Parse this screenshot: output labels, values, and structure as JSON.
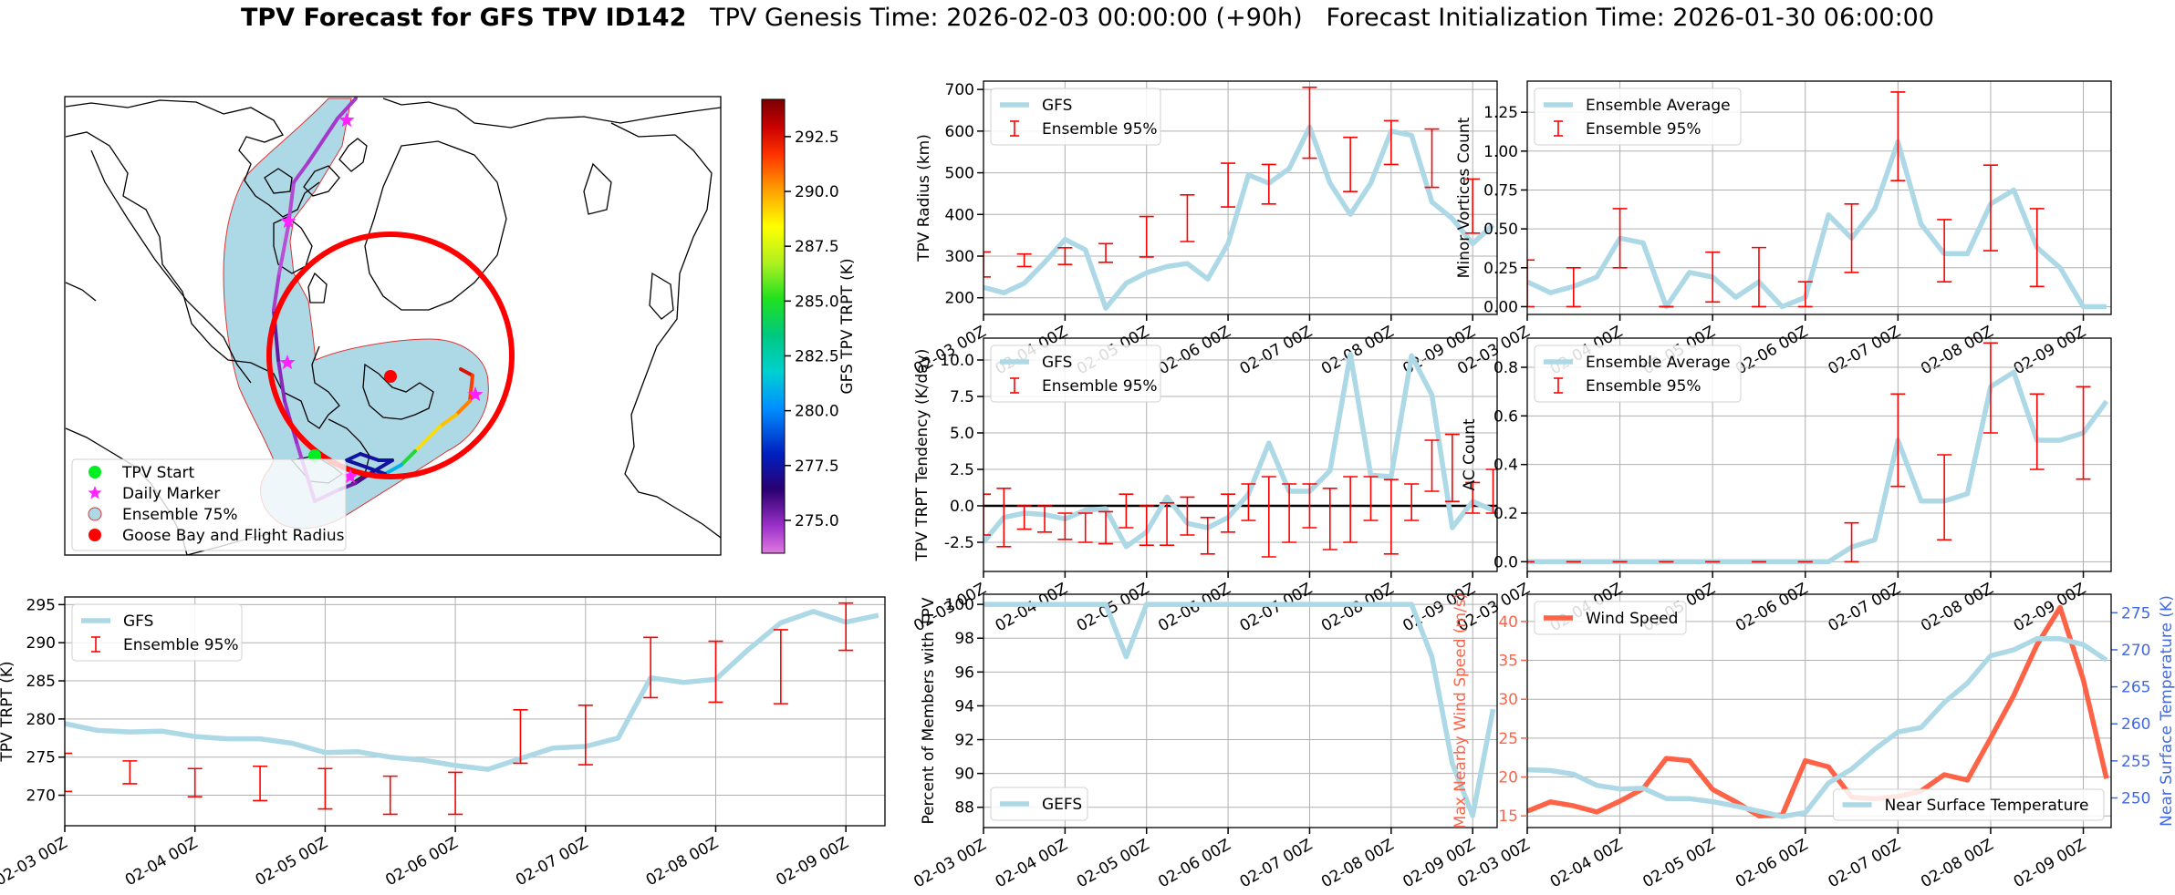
{
  "title": {
    "main": "TPV Forecast for GFS TPV ID142",
    "genesis": "TPV Genesis Time: 2026-02-03 00:00:00 (+90h)",
    "init": "Forecast Initialization Time: 2026-01-30 06:00:00"
  },
  "colors": {
    "gfs_line": "#add8e6",
    "errorbar": "#ff0000",
    "wind": "#ff6347",
    "wind_label": "#ff6347",
    "temp_label": "#4169e1",
    "ocean_plume": "#add8e6",
    "flight_radius": "#ff0000"
  },
  "time_ticks": [
    "02-03 00Z",
    "02-04 00Z",
    "02-05 00Z",
    "02-06 00Z",
    "02-07 00Z",
    "02-08 00Z",
    "02-09 00Z"
  ],
  "map": {
    "legend": [
      "TPV Start",
      "Daily Marker",
      "Ensemble 75%",
      "Goose Bay and Flight Radius"
    ],
    "legend_icons": [
      "green-circle",
      "magenta-star",
      "lightblue-circle-red-edge",
      "red-circle"
    ],
    "colorbar": {
      "label": "GFS TPV TRPT (K)",
      "ticks": [
        "275.0",
        "277.5",
        "280.0",
        "282.5",
        "285.0",
        "287.5",
        "290.0",
        "292.5"
      ],
      "range": [
        273.5,
        294.2
      ],
      "colormap": "gist_ncar_r"
    },
    "track_trpt_k": [
      292.5,
      291.5,
      290.5,
      289.5,
      289,
      284.8,
      281,
      277.5,
      277.3,
      277.5,
      277.3,
      277.5,
      277.4,
      276,
      275.4,
      274.5,
      274.5,
      274.8,
      275,
      275.5,
      274.5,
      274.2,
      274.3,
      274.5,
      274.6
    ]
  },
  "chart_data": [
    {
      "id": "trpt",
      "type": "line",
      "ylabel": "TPV TRPT (K)",
      "ylim": [
        266,
        296
      ],
      "yticks": [
        270,
        275,
        280,
        285,
        290,
        295
      ],
      "xlim": [
        0,
        25.2
      ],
      "legend": [
        "GFS",
        "Ensemble 95%"
      ],
      "series": [
        {
          "name": "GFS",
          "x": [
            0,
            1,
            2,
            3,
            4,
            5,
            6,
            7,
            8,
            9,
            10,
            11,
            12,
            13,
            14,
            15,
            16,
            17,
            18,
            19,
            20,
            21,
            22,
            23,
            24,
            25
          ],
          "y": [
            279.4,
            278.5,
            278.3,
            278.4,
            277.7,
            277.4,
            277.4,
            276.8,
            275.6,
            275.7,
            275.0,
            274.6,
            273.9,
            273.4,
            274.8,
            276.2,
            276.4,
            277.5,
            285.4,
            284.8,
            285.2,
            289.1,
            292.6,
            294.1,
            292.7,
            293.6
          ]
        }
      ],
      "errorbars": [
        {
          "x": 0,
          "lo": 270.5,
          "hi": 275.5
        },
        {
          "x": 2,
          "lo": 271.5,
          "hi": 274.5
        },
        {
          "x": 4,
          "lo": 269.8,
          "hi": 273.5
        },
        {
          "x": 6,
          "lo": 269.3,
          "hi": 273.8
        },
        {
          "x": 8,
          "lo": 268.2,
          "hi": 273.5
        },
        {
          "x": 10,
          "lo": 267.5,
          "hi": 272.5
        },
        {
          "x": 12,
          "lo": 267.5,
          "hi": 273.0
        },
        {
          "x": 14,
          "lo": 274.2,
          "hi": 281.2
        },
        {
          "x": 16,
          "lo": 274.0,
          "hi": 281.8
        },
        {
          "x": 18,
          "lo": 282.8,
          "hi": 290.7
        },
        {
          "x": 20,
          "lo": 282.2,
          "hi": 290.2
        },
        {
          "x": 22,
          "lo": 282.0,
          "hi": 291.7
        },
        {
          "x": 24,
          "lo": 289.0,
          "hi": 295.2
        }
      ]
    },
    {
      "id": "radius",
      "type": "line",
      "ylabel": "TPV Radius (km)",
      "ylim": [
        160,
        720
      ],
      "yticks": [
        200,
        300,
        400,
        500,
        600,
        700
      ],
      "xlim": [
        0,
        25.2
      ],
      "legend": [
        "GFS",
        "Ensemble 95%"
      ],
      "series": [
        {
          "name": "GFS",
          "x": [
            0,
            1,
            2,
            3,
            4,
            5,
            6,
            7,
            8,
            9,
            10,
            11,
            12,
            13,
            14,
            15,
            16,
            17,
            18,
            19,
            20,
            21,
            22,
            23,
            24,
            25
          ],
          "y": [
            225,
            212,
            235,
            285,
            340,
            315,
            175,
            235,
            260,
            275,
            282,
            245,
            330,
            495,
            475,
            510,
            610,
            475,
            400,
            475,
            600,
            590,
            430,
            390,
            330,
            375
          ]
        }
      ],
      "errorbars": [
        {
          "x": 0,
          "lo": 250,
          "hi": 310
        },
        {
          "x": 2,
          "lo": 275,
          "hi": 305
        },
        {
          "x": 4,
          "lo": 280,
          "hi": 320
        },
        {
          "x": 6,
          "lo": 285,
          "hi": 330
        },
        {
          "x": 8,
          "lo": 298,
          "hi": 395
        },
        {
          "x": 10,
          "lo": 335,
          "hi": 447
        },
        {
          "x": 12,
          "lo": 418,
          "hi": 523
        },
        {
          "x": 14,
          "lo": 425,
          "hi": 520
        },
        {
          "x": 16,
          "lo": 535,
          "hi": 705
        },
        {
          "x": 18,
          "lo": 455,
          "hi": 585
        },
        {
          "x": 20,
          "lo": 520,
          "hi": 625
        },
        {
          "x": 22,
          "lo": 465,
          "hi": 605
        },
        {
          "x": 24,
          "lo": 355,
          "hi": 485
        }
      ]
    },
    {
      "id": "tendency",
      "type": "line",
      "ylabel": "TPV TRPT Tendency (K/day)",
      "ylim": [
        -4.5,
        11.5
      ],
      "yticks": [
        -2.5,
        0.0,
        2.5,
        5.0,
        7.5,
        10.0
      ],
      "xlim": [
        0,
        25.2
      ],
      "legend": [
        "GFS",
        "Ensemble 95%"
      ],
      "zero_line": true,
      "series": [
        {
          "name": "GFS",
          "x": [
            0,
            1,
            2,
            3,
            4,
            5,
            6,
            7,
            8,
            9,
            10,
            11,
            12,
            13,
            14,
            15,
            16,
            17,
            18,
            19,
            20,
            21,
            22,
            23,
            24,
            25
          ],
          "y": [
            -2.5,
            -0.8,
            -0.5,
            -0.6,
            -0.9,
            -0.3,
            -0.2,
            -2.8,
            -1.8,
            0.6,
            -1.2,
            -1.5,
            -0.8,
            0.8,
            4.3,
            1.0,
            1.0,
            2.4,
            10.4,
            2.1,
            2.0,
            10.3,
            7.6,
            -1.5,
            0.3,
            -0.3
          ]
        }
      ],
      "errorbars": [
        {
          "x": 0,
          "lo": -2.0,
          "hi": 0.8
        },
        {
          "x": 1,
          "lo": -2.8,
          "hi": 1.2
        },
        {
          "x": 2,
          "lo": -1.6,
          "hi": 0.0
        },
        {
          "x": 3,
          "lo": -1.8,
          "hi": 0.0
        },
        {
          "x": 4,
          "lo": -2.3,
          "hi": -0.5
        },
        {
          "x": 5,
          "lo": -2.5,
          "hi": -0.5
        },
        {
          "x": 6,
          "lo": -2.6,
          "hi": -0.4
        },
        {
          "x": 7,
          "lo": -1.5,
          "hi": 0.8
        },
        {
          "x": 8,
          "lo": -2.7,
          "hi": 0.0
        },
        {
          "x": 9,
          "lo": -2.7,
          "hi": 0.2
        },
        {
          "x": 10,
          "lo": -2.0,
          "hi": 0.6
        },
        {
          "x": 11,
          "lo": -3.3,
          "hi": -0.8
        },
        {
          "x": 12,
          "lo": -1.8,
          "hi": 0.8
        },
        {
          "x": 13,
          "lo": -1.0,
          "hi": 1.5
        },
        {
          "x": 14,
          "lo": -3.5,
          "hi": 2.0
        },
        {
          "x": 15,
          "lo": -2.5,
          "hi": 1.5
        },
        {
          "x": 16,
          "lo": -1.5,
          "hi": 1.5
        },
        {
          "x": 17,
          "lo": -3.0,
          "hi": 1.2
        },
        {
          "x": 18,
          "lo": -2.5,
          "hi": 2.0
        },
        {
          "x": 19,
          "lo": -1.0,
          "hi": 2.0
        },
        {
          "x": 20,
          "lo": -3.3,
          "hi": 1.8
        },
        {
          "x": 21,
          "lo": -1.0,
          "hi": 1.5
        },
        {
          "x": 22,
          "lo": 1.0,
          "hi": 4.5
        },
        {
          "x": 23,
          "lo": 0.3,
          "hi": 4.9
        },
        {
          "x": 24,
          "lo": -0.5,
          "hi": 1.6
        },
        {
          "x": 25,
          "lo": -0.5,
          "hi": 2.5
        }
      ]
    },
    {
      "id": "percent",
      "type": "line",
      "ylabel": "Percent of Members with TPV",
      "ylim": [
        86.8,
        100.6
      ],
      "yticks": [
        88,
        90,
        92,
        94,
        96,
        98,
        100
      ],
      "xlim": [
        0,
        25.2
      ],
      "legend": [
        "GEFS"
      ],
      "series": [
        {
          "name": "GEFS",
          "x": [
            0,
            1,
            2,
            3,
            4,
            5,
            6,
            7,
            8,
            9,
            10,
            11,
            12,
            13,
            14,
            15,
            16,
            17,
            18,
            19,
            20,
            21,
            22,
            23,
            24,
            25
          ],
          "y": [
            100,
            100,
            100,
            100,
            100,
            100,
            100,
            100,
            100,
            100,
            100,
            100,
            100,
            100,
            100,
            100,
            100,
            100,
            100,
            100,
            100,
            100,
            100,
            100,
            100,
            100
          ]
        }
      ],
      "series_actual": [
        {
          "x": [
            0,
            1,
            2,
            3,
            4,
            5,
            6,
            7,
            8,
            9,
            10,
            11,
            12,
            13,
            14,
            15,
            16,
            17,
            18,
            19,
            20,
            21,
            22,
            23,
            24,
            25
          ],
          "y": [
            100,
            100,
            100,
            100,
            100,
            100,
            100,
            96.9,
            100,
            100,
            100,
            100,
            100,
            100,
            100,
            100,
            100,
            100,
            100,
            100,
            100,
            100,
            96.9,
            90.6,
            87.5,
            93.8
          ]
        }
      ]
    },
    {
      "id": "minor",
      "type": "line",
      "ylabel": "Minor Vortices Count",
      "ylim": [
        -0.05,
        1.45
      ],
      "yticks": [
        0.0,
        0.25,
        0.5,
        0.75,
        1.0,
        1.25
      ],
      "xlim": [
        0,
        25.2
      ],
      "legend": [
        "Ensemble Average",
        "Ensemble 95%"
      ],
      "series": [
        {
          "name": "Ensemble Average",
          "x": [
            0,
            1,
            2,
            3,
            4,
            5,
            6,
            7,
            8,
            9,
            10,
            11,
            12,
            13,
            14,
            15,
            16,
            17,
            18,
            19,
            20,
            21,
            22,
            23,
            24,
            25
          ],
          "y": [
            0.16,
            0.09,
            0.13,
            0.19,
            0.44,
            0.41,
            0.0,
            0.22,
            0.19,
            0.06,
            0.16,
            0.0,
            0.06,
            0.59,
            0.44,
            0.63,
            1.06,
            0.53,
            0.34,
            0.34,
            0.66,
            0.75,
            0.38,
            0.25,
            0.0,
            0.0
          ]
        }
      ],
      "errorbars": [
        {
          "x": 0,
          "lo": 0.0,
          "hi": 0.3
        },
        {
          "x": 2,
          "lo": 0.0,
          "hi": 0.25
        },
        {
          "x": 4,
          "lo": 0.25,
          "hi": 0.63
        },
        {
          "x": 6,
          "lo": 0.0,
          "hi": 0.0
        },
        {
          "x": 8,
          "lo": 0.03,
          "hi": 0.35
        },
        {
          "x": 10,
          "lo": 0.0,
          "hi": 0.38
        },
        {
          "x": 12,
          "lo": 0.0,
          "hi": 0.16
        },
        {
          "x": 14,
          "lo": 0.22,
          "hi": 0.66
        },
        {
          "x": 16,
          "lo": 0.81,
          "hi": 1.38
        },
        {
          "x": 18,
          "lo": 0.16,
          "hi": 0.56
        },
        {
          "x": 20,
          "lo": 0.36,
          "hi": 0.91
        },
        {
          "x": 22,
          "lo": 0.13,
          "hi": 0.63
        }
      ]
    },
    {
      "id": "ac",
      "type": "line",
      "ylabel": "AC Count",
      "ylim": [
        -0.04,
        0.92
      ],
      "yticks": [
        0.0,
        0.2,
        0.4,
        0.6,
        0.8
      ],
      "xlim": [
        0,
        25.2
      ],
      "legend": [
        "Ensemble Average",
        "Ensemble 95%"
      ],
      "series": [
        {
          "name": "Ensemble Average",
          "x": [
            0,
            1,
            2,
            3,
            4,
            5,
            6,
            7,
            8,
            9,
            10,
            11,
            12,
            13,
            14,
            15,
            16,
            17,
            18,
            19,
            20,
            21,
            22,
            23,
            24,
            25
          ],
          "y": [
            0,
            0,
            0,
            0,
            0,
            0,
            0,
            0,
            0,
            0,
            0,
            0,
            0,
            0,
            0.06,
            0.09,
            0.5,
            0.25,
            0.25,
            0.28,
            0.72,
            0.78,
            0.5,
            0.5,
            0.53,
            0.66
          ]
        }
      ],
      "errorbars": [
        {
          "x": 0,
          "lo": 0,
          "hi": 0
        },
        {
          "x": 2,
          "lo": 0,
          "hi": 0
        },
        {
          "x": 4,
          "lo": 0,
          "hi": 0
        },
        {
          "x": 6,
          "lo": 0,
          "hi": 0
        },
        {
          "x": 8,
          "lo": 0,
          "hi": 0
        },
        {
          "x": 10,
          "lo": 0,
          "hi": 0
        },
        {
          "x": 12,
          "lo": 0,
          "hi": 0
        },
        {
          "x": 14,
          "lo": 0.0,
          "hi": 0.16
        },
        {
          "x": 16,
          "lo": 0.31,
          "hi": 0.69
        },
        {
          "x": 18,
          "lo": 0.09,
          "hi": 0.44
        },
        {
          "x": 20,
          "lo": 0.53,
          "hi": 0.9
        },
        {
          "x": 22,
          "lo": 0.38,
          "hi": 0.69
        },
        {
          "x": 24,
          "lo": 0.34,
          "hi": 0.72
        }
      ]
    },
    {
      "id": "wind",
      "type": "line",
      "ylabel": "Max Nearby Wind Speed (m/s)",
      "ylabel_right": "Near Surface Temperature (K)",
      "ylim": [
        13.5,
        43.5
      ],
      "yticks": [
        15,
        20,
        25,
        30,
        35,
        40
      ],
      "ylim_right": [
        246,
        277.5
      ],
      "yticks_right": [
        250,
        255,
        260,
        265,
        270,
        275
      ],
      "xlim": [
        0,
        25.2
      ],
      "legend": [
        "Wind Speed"
      ],
      "legend_right": [
        "Near Surface Temperature"
      ],
      "series": [
        {
          "name": "Wind Speed",
          "x": [
            0,
            1,
            2,
            3,
            4,
            5,
            6,
            7,
            8,
            9,
            10,
            11,
            12,
            13,
            14,
            15,
            16,
            17,
            18,
            19,
            20,
            21,
            22,
            23,
            24,
            25
          ],
          "y": [
            15.6,
            16.8,
            16.3,
            15.5,
            16.9,
            18.5,
            22.4,
            22.1,
            18.4,
            16.8,
            15.0,
            15.1,
            22.1,
            21.3,
            17.4,
            17.2,
            17.5,
            18.2,
            20.3,
            19.6,
            25.0,
            30.5,
            37.0,
            41.8,
            32.5,
            19.8
          ]
        },
        {
          "name": "Near Surface Temperature",
          "x": [
            0,
            1,
            2,
            3,
            4,
            5,
            6,
            7,
            8,
            9,
            10,
            11,
            12,
            13,
            14,
            15,
            16,
            17,
            18,
            19,
            20,
            21,
            22,
            23,
            24,
            25
          ],
          "y": [
            253.8,
            253.7,
            253.2,
            251.7,
            251.2,
            251.3,
            249.9,
            249.9,
            249.5,
            248.9,
            248.2,
            247.5,
            248.0,
            252.0,
            253.9,
            256.6,
            258.9,
            259.5,
            262.9,
            265.5,
            269.2,
            270.0,
            271.5,
            271.5,
            270.7,
            268.6
          ]
        }
      ]
    }
  ]
}
